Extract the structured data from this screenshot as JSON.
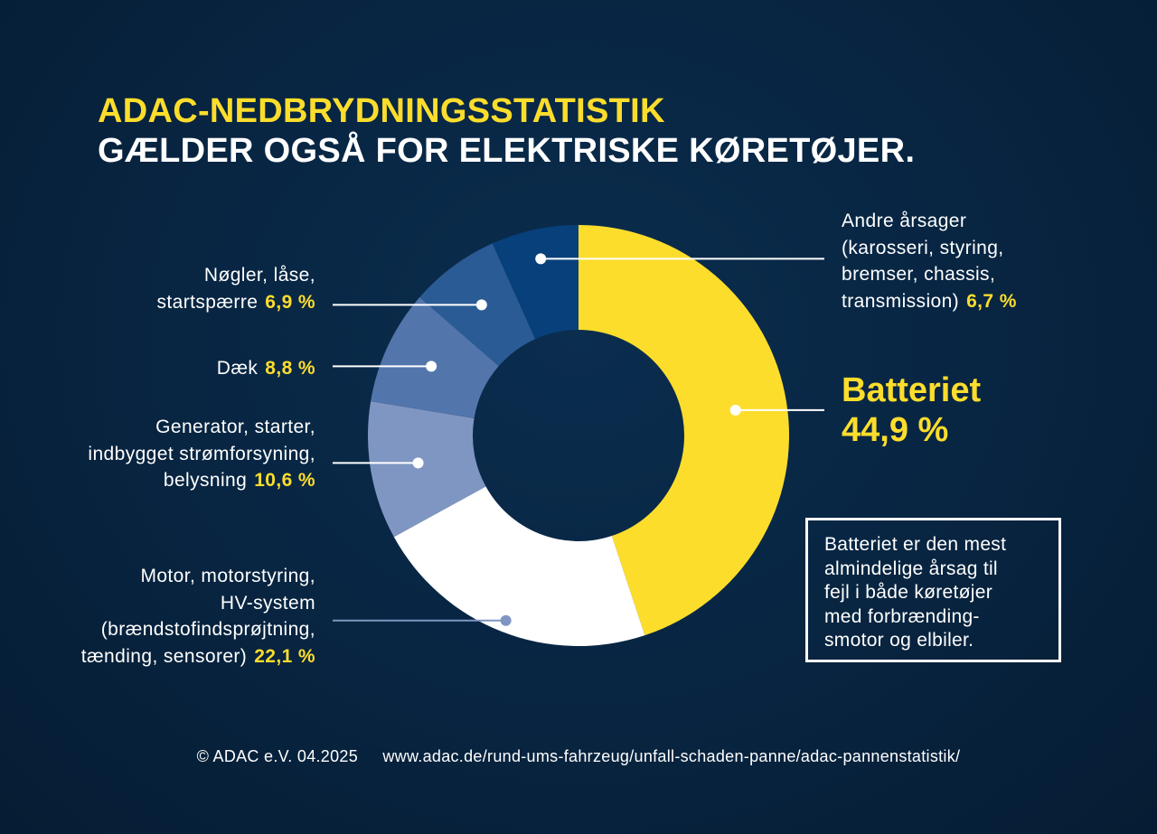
{
  "title": {
    "line1": "ADAC-NEDBRYDNINGSSTATISTIK",
    "line2": "GÆLDER OGSÅ FOR ELEKTRISKE KØRETØJER."
  },
  "chart_data": {
    "type": "pie",
    "donut": true,
    "start_angle_deg": 0,
    "direction": "clockwise",
    "slices": [
      {
        "label_lines": [
          "Batteriet"
        ],
        "value": 44.9,
        "value_label": "44,9 %",
        "color": "#fddd2c"
      },
      {
        "label_lines": [
          "Motor, motorstyring,",
          "HV-system",
          "(brændstofindsprøjtning,",
          "tænding, sensorer)"
        ],
        "value": 22.1,
        "value_label": "22,1 %",
        "color": "#ffffff"
      },
      {
        "label_lines": [
          "Generator, starter,",
          "indbygget strømforsyning,",
          "belysning"
        ],
        "value": 10.6,
        "value_label": "10,6 %",
        "color": "#8096c2"
      },
      {
        "label_lines": [
          "Dæk"
        ],
        "value": 8.8,
        "value_label": "8,8 %",
        "color": "#5275ac"
      },
      {
        "label_lines": [
          "Nøgler, låse,",
          "startspærre"
        ],
        "value": 6.9,
        "value_label": "6,9 %",
        "color": "#2a5b94"
      },
      {
        "label_lines": [
          "Andre årsager",
          "(karosseri, styring,",
          "bremser, chassis,",
          "transmission)"
        ],
        "value": 6.7,
        "value_label": "6,7 %",
        "color": "#07407a"
      }
    ]
  },
  "note": {
    "lines": [
      "Batteriet er den mest",
      "almindelige årsag til",
      "fejl i både køretøjer",
      "med forbrænding-",
      "smotor og elbiler."
    ]
  },
  "footer": {
    "copyright": "© ADAC e.V. 04.2025",
    "url": "www.adac.de/rund-ums-fahrzeug/unfall-schaden-panne/adac-pannenstatistik/"
  },
  "colors": {
    "accent": "#fddd2c",
    "background": "#082643",
    "motor_leader": "#8096c2"
  }
}
